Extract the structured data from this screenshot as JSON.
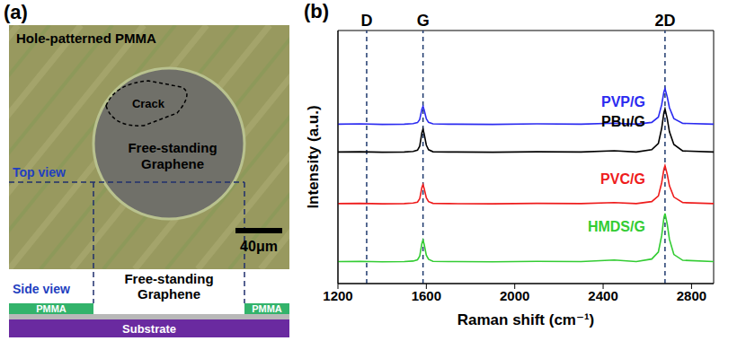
{
  "panel_a": {
    "label": "(a)",
    "title": "Hole-patterned PMMA",
    "crack": "Crack",
    "hole": "Free-standing Graphene",
    "top_view": "Top view",
    "scale_bar": "40μm",
    "side_view": {
      "title": "Side view",
      "gap": "Free-standing Graphene",
      "left": "PMMA",
      "right": "PMMA",
      "base": "Substrate"
    }
  },
  "chart_data": {
    "type": "line",
    "panel_label": "(b)",
    "x_label": "Raman shift (cm⁻¹)",
    "y_label": "Intensity (a.u.)",
    "xlim": [
      1200,
      2900
    ],
    "xticks": [
      1200,
      1600,
      2000,
      2400,
      2800
    ],
    "ylim": [
      0,
      10
    ],
    "tick_labels": "x",
    "reference_lines": [
      {
        "x": 1330,
        "label": "D"
      },
      {
        "x": 1585,
        "label": "G"
      },
      {
        "x": 2680,
        "label": "2D"
      }
    ],
    "x": [
      1200,
      1300,
      1400,
      1500,
      1540,
      1560,
      1570,
      1580,
      1585,
      1590,
      1600,
      1610,
      1630,
      1700,
      1900,
      2100,
      2300,
      2450,
      2550,
      2620,
      2650,
      2665,
      2675,
      2680,
      2690,
      2700,
      2720,
      2760,
      2900
    ],
    "series": [
      {
        "name": "PVP/G",
        "color": "#2b2bf0",
        "values": [
          6.3,
          6.31,
          6.29,
          6.3,
          6.32,
          6.36,
          6.48,
          6.9,
          7.0,
          6.86,
          6.51,
          6.37,
          6.31,
          6.3,
          6.29,
          6.31,
          6.3,
          6.34,
          6.3,
          6.37,
          6.58,
          7.07,
          7.57,
          7.7,
          7.38,
          6.95,
          6.52,
          6.33,
          6.3
        ]
      },
      {
        "name": "PBu/G",
        "color": "#000000",
        "values": [
          5.2,
          5.21,
          5.19,
          5.2,
          5.22,
          5.27,
          5.43,
          5.97,
          6.1,
          5.92,
          5.47,
          5.29,
          5.21,
          5.2,
          5.19,
          5.21,
          5.2,
          5.25,
          5.2,
          5.29,
          5.54,
          6.14,
          6.75,
          6.9,
          6.52,
          6.0,
          5.5,
          5.24,
          5.2
        ]
      },
      {
        "name": "PVC/G",
        "color": "#ee1c1c",
        "values": [
          3.16,
          3.17,
          3.15,
          3.16,
          3.18,
          3.22,
          3.35,
          3.8,
          3.91,
          3.76,
          3.39,
          3.24,
          3.17,
          3.16,
          3.15,
          3.17,
          3.16,
          3.2,
          3.16,
          3.24,
          3.46,
          3.99,
          4.52,
          4.66,
          4.32,
          3.86,
          3.42,
          3.2,
          3.16
        ]
      },
      {
        "name": "HMDS/G",
        "color": "#33cc33",
        "values": [
          0.87,
          0.88,
          0.86,
          0.87,
          0.89,
          0.94,
          1.08,
          1.59,
          1.72,
          1.55,
          1.12,
          0.96,
          0.88,
          0.87,
          0.86,
          0.88,
          0.87,
          0.93,
          0.87,
          0.97,
          1.25,
          1.9,
          2.6,
          2.77,
          2.35,
          1.75,
          1.15,
          0.92,
          0.87
        ]
      }
    ]
  }
}
